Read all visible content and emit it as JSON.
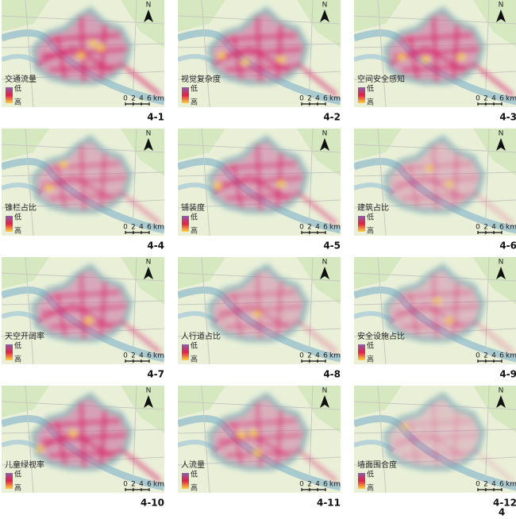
{
  "panels": [
    {
      "title": "交通流量",
      "legend_low": "低",
      "legend_high": "高",
      "label": "4-1"
    },
    {
      "title": "视觉复杂度",
      "legend_low": "低",
      "legend_high": "高",
      "label": "4-2"
    },
    {
      "title": "空间安全感知",
      "legend_low": "低",
      "legend_high": "高",
      "label": "4-3"
    },
    {
      "title": "锥栏占比",
      "legend_low": "低",
      "legend_high": "高",
      "label": "4-4"
    },
    {
      "title": "铺装度",
      "legend_low": "低",
      "legend_high": "高",
      "label": "4-5"
    },
    {
      "title": "建筑占比",
      "legend_low": "低",
      "legend_high": "高",
      "label": "4-6"
    },
    {
      "title": "天空开阔率",
      "legend_low": "低",
      "legend_high": "高",
      "label": "4-7"
    },
    {
      "title": "人行道占比",
      "legend_low": "低",
      "legend_high": "高",
      "label": "4-8"
    },
    {
      "title": "安全设施占比",
      "legend_low": "低",
      "legend_high": "高",
      "label": "4-9"
    },
    {
      "title": "儿童绿视率",
      "legend_low": "低",
      "legend_high": "高",
      "label": "4-10"
    },
    {
      "title": "人流量",
      "legend_low": "低",
      "legend_high": "高",
      "label": "4-11"
    },
    {
      "title": "墙面围合度",
      "legend_low": "低",
      "legend_high": "高",
      "label": "4-12"
    }
  ],
  "scale": {
    "ticks": [
      "0",
      "2",
      "4",
      "6"
    ],
    "unit": "km"
  },
  "north": "N",
  "figure_label": "4"
}
